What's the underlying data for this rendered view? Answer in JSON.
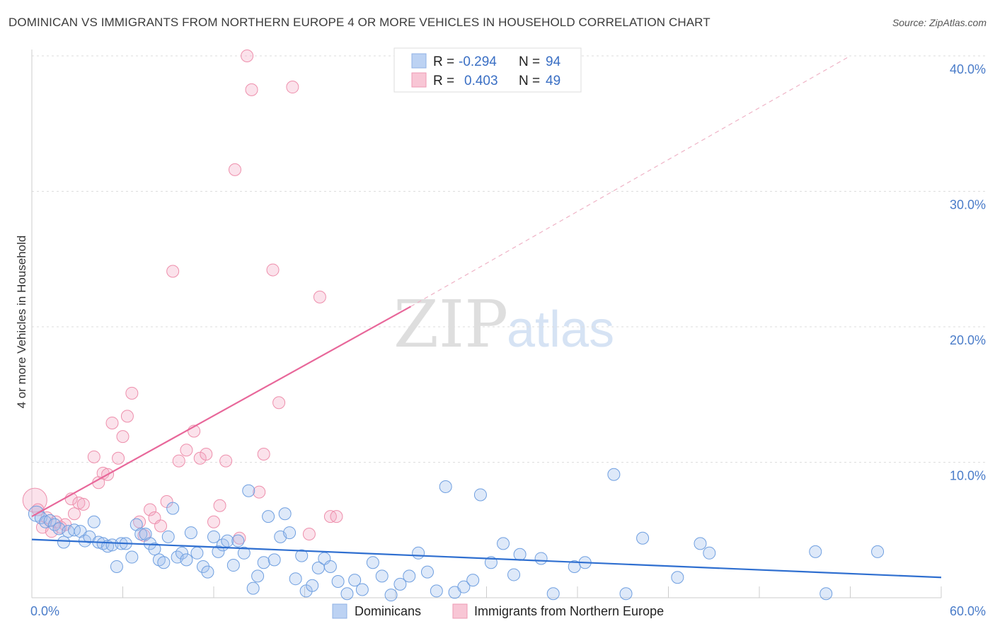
{
  "header": {
    "title": "DOMINICAN VS IMMIGRANTS FROM NORTHERN EUROPE 4 OR MORE VEHICLES IN HOUSEHOLD CORRELATION CHART",
    "source": "Source: ZipAtlas.com"
  },
  "watermark": {
    "zip": "ZIP",
    "atlas": "atlas"
  },
  "legend": {
    "r_label": "R =",
    "n_label": "N =",
    "items": [
      {
        "r": "-0.294",
        "n": "94",
        "color": "#6f9fe0"
      },
      {
        "r": "0.403",
        "n": "49",
        "color": "#ee8fac"
      }
    ]
  },
  "bottom_legend": [
    "Dominicans",
    "Immigrants from Northern Europe"
  ],
  "chart_data": {
    "type": "scatter",
    "ylabel": "4 or more Vehicles in Household",
    "xlim": [
      0,
      60
    ],
    "ylim": [
      0,
      40
    ],
    "x_tick_labels": [
      "0.0%",
      "60.0%"
    ],
    "y_ticks": [
      10,
      20,
      30,
      40
    ],
    "y_tick_labels": [
      "10.0%",
      "20.0%",
      "30.0%",
      "40.0%"
    ],
    "grid": true,
    "colors": {
      "blue": "#6f9fe0",
      "pink": "#ee8fac",
      "blue_line": "#2f6fd0",
      "pink_line": "#e8679a"
    },
    "series": [
      {
        "name": "Dominicans",
        "points": [
          [
            0.3,
            6.2
          ],
          [
            0.6,
            5.9
          ],
          [
            0.9,
            5.6
          ],
          [
            1.2,
            5.7
          ],
          [
            1.5,
            5.4
          ],
          [
            1.8,
            5.1
          ],
          [
            2.1,
            4.1
          ],
          [
            2.4,
            4.9
          ],
          [
            2.8,
            5.0
          ],
          [
            3.2,
            4.9
          ],
          [
            3.5,
            4.2
          ],
          [
            3.8,
            4.5
          ],
          [
            4.1,
            5.6
          ],
          [
            4.4,
            4.1
          ],
          [
            4.7,
            4.0
          ],
          [
            5.0,
            3.8
          ],
          [
            5.3,
            3.9
          ],
          [
            5.6,
            2.3
          ],
          [
            5.9,
            4.0
          ],
          [
            6.2,
            4.0
          ],
          [
            6.6,
            3.0
          ],
          [
            6.9,
            5.4
          ],
          [
            7.2,
            4.7
          ],
          [
            7.5,
            4.7
          ],
          [
            7.8,
            4.0
          ],
          [
            8.1,
            3.6
          ],
          [
            8.4,
            2.8
          ],
          [
            8.7,
            2.6
          ],
          [
            9.0,
            4.5
          ],
          [
            9.3,
            6.6
          ],
          [
            9.6,
            3.0
          ],
          [
            9.9,
            3.3
          ],
          [
            10.2,
            2.8
          ],
          [
            10.5,
            4.8
          ],
          [
            10.9,
            3.3
          ],
          [
            11.3,
            2.3
          ],
          [
            11.6,
            1.9
          ],
          [
            12.0,
            4.5
          ],
          [
            12.3,
            3.4
          ],
          [
            12.6,
            3.9
          ],
          [
            12.9,
            4.2
          ],
          [
            13.3,
            2.4
          ],
          [
            13.6,
            4.2
          ],
          [
            14.0,
            3.3
          ],
          [
            14.3,
            7.9
          ],
          [
            14.6,
            0.7
          ],
          [
            14.9,
            1.6
          ],
          [
            15.3,
            2.6
          ],
          [
            15.6,
            6.0
          ],
          [
            16.0,
            2.8
          ],
          [
            16.4,
            4.5
          ],
          [
            16.7,
            6.2
          ],
          [
            17.0,
            4.8
          ],
          [
            17.4,
            1.4
          ],
          [
            17.8,
            3.1
          ],
          [
            18.1,
            0.5
          ],
          [
            18.5,
            0.9
          ],
          [
            18.9,
            2.2
          ],
          [
            19.3,
            2.9
          ],
          [
            19.7,
            2.3
          ],
          [
            20.2,
            1.2
          ],
          [
            20.8,
            0.3
          ],
          [
            21.3,
            1.3
          ],
          [
            21.8,
            0.6
          ],
          [
            22.5,
            2.6
          ],
          [
            23.1,
            1.6
          ],
          [
            23.7,
            0.2
          ],
          [
            24.3,
            1.0
          ],
          [
            24.9,
            1.6
          ],
          [
            25.5,
            3.3
          ],
          [
            26.1,
            1.9
          ],
          [
            26.7,
            0.5
          ],
          [
            27.3,
            8.2
          ],
          [
            27.9,
            0.4
          ],
          [
            28.5,
            0.8
          ],
          [
            29.1,
            1.3
          ],
          [
            29.6,
            7.6
          ],
          [
            30.3,
            2.6
          ],
          [
            31.1,
            4.0
          ],
          [
            31.8,
            1.7
          ],
          [
            32.2,
            3.2
          ],
          [
            33.6,
            2.9
          ],
          [
            34.4,
            0.3
          ],
          [
            35.8,
            2.3
          ],
          [
            36.5,
            2.6
          ],
          [
            38.4,
            9.1
          ],
          [
            39.2,
            0.3
          ],
          [
            40.3,
            4.4
          ],
          [
            42.6,
            1.5
          ],
          [
            44.1,
            4.0
          ],
          [
            44.7,
            3.3
          ],
          [
            51.7,
            3.4
          ],
          [
            52.4,
            0.3
          ],
          [
            55.8,
            3.4
          ]
        ]
      },
      {
        "name": "Immigrants from Northern Europe",
        "points": [
          [
            0.2,
            7.2
          ],
          [
            0.4,
            6.5
          ],
          [
            0.7,
            5.2
          ],
          [
            1.0,
            5.9
          ],
          [
            1.3,
            4.9
          ],
          [
            1.6,
            5.6
          ],
          [
            1.9,
            5.2
          ],
          [
            2.2,
            5.4
          ],
          [
            2.6,
            7.3
          ],
          [
            2.8,
            6.2
          ],
          [
            3.1,
            7.0
          ],
          [
            3.4,
            6.9
          ],
          [
            4.1,
            10.4
          ],
          [
            4.4,
            8.5
          ],
          [
            4.7,
            9.2
          ],
          [
            5.0,
            9.1
          ],
          [
            5.3,
            12.9
          ],
          [
            5.7,
            10.3
          ],
          [
            6.0,
            11.9
          ],
          [
            6.3,
            13.4
          ],
          [
            6.6,
            15.1
          ],
          [
            7.1,
            5.6
          ],
          [
            7.4,
            4.6
          ],
          [
            7.8,
            6.5
          ],
          [
            8.1,
            5.9
          ],
          [
            8.5,
            5.3
          ],
          [
            8.9,
            7.1
          ],
          [
            9.3,
            24.1
          ],
          [
            9.7,
            10.1
          ],
          [
            10.2,
            10.9
          ],
          [
            10.7,
            12.3
          ],
          [
            11.1,
            10.3
          ],
          [
            11.5,
            10.6
          ],
          [
            12.0,
            5.6
          ],
          [
            12.4,
            6.8
          ],
          [
            12.8,
            10.1
          ],
          [
            13.4,
            31.6
          ],
          [
            13.7,
            4.4
          ],
          [
            14.2,
            40.0
          ],
          [
            14.5,
            37.5
          ],
          [
            15.0,
            7.8
          ],
          [
            15.3,
            10.6
          ],
          [
            15.9,
            24.2
          ],
          [
            16.3,
            14.4
          ],
          [
            17.2,
            37.7
          ],
          [
            18.3,
            4.7
          ],
          [
            19.0,
            22.2
          ],
          [
            19.7,
            6.0
          ],
          [
            20.1,
            6.0
          ]
        ]
      }
    ],
    "trend_lines": [
      {
        "series": "Dominicans",
        "from": [
          0,
          4.3
        ],
        "to": [
          60,
          1.5
        ],
        "style": "solid"
      },
      {
        "series": "Immigrants from Northern Europe",
        "from": [
          0,
          6.0
        ],
        "to": [
          25,
          21.5
        ],
        "style": "solid",
        "extended_to": [
          54,
          40.0
        ]
      }
    ]
  }
}
